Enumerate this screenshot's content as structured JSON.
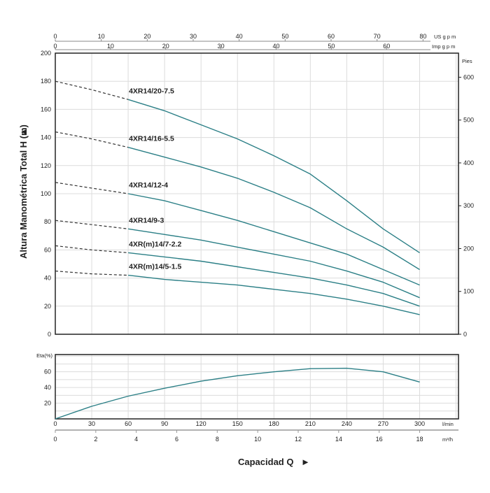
{
  "chart_data": [
    {
      "type": "line",
      "title": "",
      "xlabel": "Capacidad Q",
      "ylabel": "Altura Manométrica Total H (m)",
      "x_unit": "l/min",
      "xlim": [
        0,
        332
      ],
      "ylim": [
        0,
        200
      ],
      "yticks": [
        0,
        20,
        40,
        60,
        80,
        100,
        120,
        140,
        160,
        180,
        200
      ],
      "grid": true,
      "secondary_y": {
        "label": "Pies",
        "ticks": [
          0,
          100,
          200,
          300,
          400,
          500,
          600
        ],
        "factor_per_m": 3.281
      },
      "top_axes": [
        {
          "label": "US g p m",
          "ticks": [
            0,
            10,
            20,
            30,
            40,
            50,
            60,
            70,
            80
          ],
          "lpm_per_unit": 3.785
        },
        {
          "label": "Imp g p m",
          "ticks": [
            0,
            10,
            20,
            30,
            40,
            50,
            60
          ],
          "lpm_per_unit": 4.546
        }
      ],
      "x": [
        0,
        30,
        60,
        90,
        120,
        150,
        180,
        210,
        240,
        270,
        300
      ],
      "dashed_until_x": 60,
      "series": [
        {
          "name": "4XR14/20-7.5",
          "values": [
            180,
            174,
            167,
            159,
            149,
            139,
            127,
            114,
            95,
            75,
            58
          ]
        },
        {
          "name": "4XR14/16-5.5",
          "values": [
            144,
            139,
            133,
            126,
            119,
            111,
            101,
            90,
            75,
            62,
            46
          ]
        },
        {
          "name": "4XR14/12-4",
          "values": [
            108,
            104,
            100,
            95,
            88,
            81,
            73,
            65,
            57,
            46,
            35
          ]
        },
        {
          "name": "4XR14/9-3",
          "values": [
            81,
            78,
            75,
            71,
            67,
            62,
            57,
            52,
            45,
            37,
            26
          ]
        },
        {
          "name": "4XR(m)14/7-2.2",
          "values": [
            63,
            60,
            58,
            55,
            52,
            48,
            44,
            40,
            35,
            29,
            20
          ]
        },
        {
          "name": "4XR(m)14/5-1.5",
          "values": [
            45,
            43,
            42,
            39,
            37,
            35,
            32,
            29,
            25,
            20,
            14
          ]
        }
      ],
      "color": "#2b7f86"
    },
    {
      "type": "line",
      "ylabel": "Eta(%)",
      "xlabel": "Capacidad Q",
      "yticks": [
        20,
        40,
        60
      ],
      "ylim": [
        0,
        82
      ],
      "xlim": [
        0,
        332
      ],
      "x_axes": [
        {
          "label": "l/min",
          "ticks": [
            0,
            30,
            60,
            90,
            120,
            150,
            180,
            210,
            240,
            270,
            300
          ],
          "lpm_per_unit": 1
        },
        {
          "label": "m³/h",
          "ticks": [
            0,
            2,
            4,
            6,
            8,
            10,
            12,
            14,
            16,
            18
          ],
          "lpm_per_unit": 16.667
        }
      ],
      "x": [
        0,
        30,
        60,
        90,
        120,
        150,
        180,
        210,
        240,
        270,
        300
      ],
      "series": [
        {
          "name": "Eta",
          "values": [
            0,
            16,
            29,
            39,
            48,
            55,
            60,
            64,
            64.5,
            60,
            47
          ]
        }
      ],
      "color": "#2b7f86"
    }
  ],
  "labels": {
    "ylabel_arrow": "▲",
    "xlabel_arrow": "►"
  }
}
